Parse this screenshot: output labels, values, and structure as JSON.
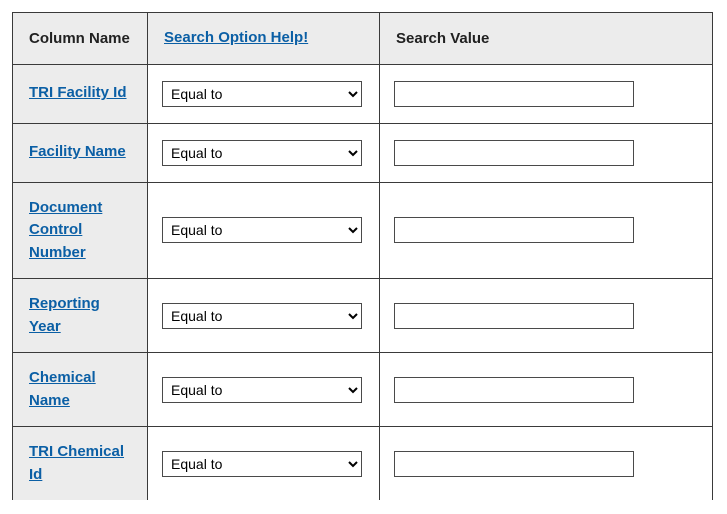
{
  "headers": {
    "column_name": "Column Name",
    "search_option_help": "Search Option Help!",
    "search_value": "Search Value"
  },
  "default_option": "Equal to",
  "rows": [
    {
      "label": "TRI Facility Id",
      "option": "Equal to",
      "value": ""
    },
    {
      "label": "Facility Name",
      "option": "Equal to",
      "value": ""
    },
    {
      "label": "Document Control Number",
      "option": "Equal to",
      "value": ""
    },
    {
      "label": "Reporting Year",
      "option": "Equal to",
      "value": ""
    },
    {
      "label": "Chemical Name",
      "option": "Equal to",
      "value": ""
    },
    {
      "label": "TRI Chemical Id",
      "option": "Equal to",
      "value": ""
    }
  ],
  "colors": {
    "link": "#0b5fa5",
    "header_bg": "#ececec",
    "border": "#3a3a3a",
    "text": "#212121"
  }
}
